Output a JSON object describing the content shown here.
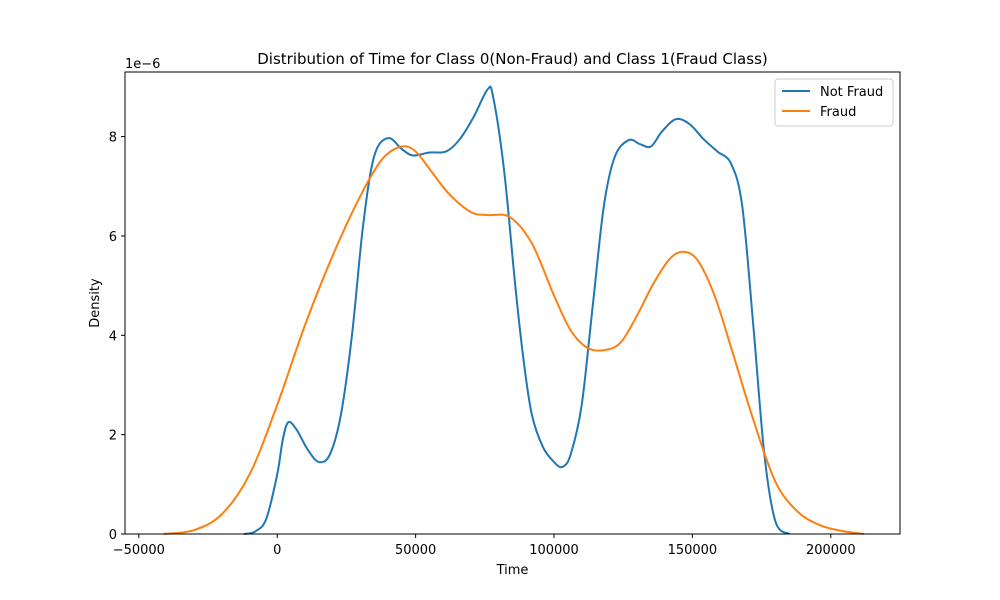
{
  "chart_data": {
    "type": "line",
    "title": "Distribution of Time for Class 0(Non-Fraud) and Class 1(Fraud Class)",
    "xlabel": "Time",
    "ylabel": "Density",
    "y_offset_label": "1e−6",
    "xlim": [
      -55000,
      225000
    ],
    "ylim": [
      0,
      9.3
    ],
    "xticks": [
      -50000,
      0,
      50000,
      100000,
      150000,
      200000
    ],
    "xtick_labels": [
      "−50000",
      "0",
      "50000",
      "100000",
      "150000",
      "200000"
    ],
    "yticks": [
      0,
      2,
      4,
      6,
      8
    ],
    "ytick_labels": [
      "0",
      "2",
      "4",
      "6",
      "8"
    ],
    "legend_position": "top-right",
    "grid": false,
    "series": [
      {
        "name": "Not Fraud",
        "color": "#1f77b4",
        "points": [
          [
            -12000,
            0.0
          ],
          [
            -8000,
            0.05
          ],
          [
            -4000,
            0.3
          ],
          [
            0,
            1.2
          ],
          [
            2000,
            1.9
          ],
          [
            4000,
            2.25
          ],
          [
            7000,
            2.1
          ],
          [
            11000,
            1.7
          ],
          [
            15000,
            1.45
          ],
          [
            19000,
            1.6
          ],
          [
            23000,
            2.4
          ],
          [
            27000,
            4.0
          ],
          [
            31000,
            6.2
          ],
          [
            35000,
            7.6
          ],
          [
            40000,
            7.97
          ],
          [
            45000,
            7.75
          ],
          [
            49000,
            7.62
          ],
          [
            55000,
            7.68
          ],
          [
            61000,
            7.7
          ],
          [
            66000,
            7.95
          ],
          [
            71000,
            8.4
          ],
          [
            76000,
            8.95
          ],
          [
            78000,
            8.8
          ],
          [
            82000,
            7.3
          ],
          [
            86000,
            5.0
          ],
          [
            89000,
            3.5
          ],
          [
            92000,
            2.4
          ],
          [
            96000,
            1.75
          ],
          [
            100000,
            1.45
          ],
          [
            103000,
            1.35
          ],
          [
            106000,
            1.6
          ],
          [
            110000,
            2.6
          ],
          [
            114000,
            4.6
          ],
          [
            118000,
            6.6
          ],
          [
            122000,
            7.6
          ],
          [
            127000,
            7.93
          ],
          [
            131000,
            7.85
          ],
          [
            135000,
            7.8
          ],
          [
            139000,
            8.1
          ],
          [
            144000,
            8.35
          ],
          [
            149000,
            8.25
          ],
          [
            154000,
            7.95
          ],
          [
            159000,
            7.7
          ],
          [
            164000,
            7.45
          ],
          [
            168000,
            6.6
          ],
          [
            172000,
            4.2
          ],
          [
            176000,
            1.6
          ],
          [
            180000,
            0.25
          ],
          [
            185000,
            0.0
          ]
        ]
      },
      {
        "name": "Fraud",
        "color": "#ff7f0e",
        "points": [
          [
            -41000,
            0.0
          ],
          [
            -30000,
            0.08
          ],
          [
            -20000,
            0.4
          ],
          [
            -10000,
            1.2
          ],
          [
            0,
            2.6
          ],
          [
            10000,
            4.2
          ],
          [
            20000,
            5.6
          ],
          [
            30000,
            6.8
          ],
          [
            38000,
            7.55
          ],
          [
            45000,
            7.8
          ],
          [
            50000,
            7.7
          ],
          [
            55000,
            7.35
          ],
          [
            62000,
            6.85
          ],
          [
            70000,
            6.48
          ],
          [
            76000,
            6.42
          ],
          [
            84000,
            6.38
          ],
          [
            92000,
            5.85
          ],
          [
            100000,
            4.8
          ],
          [
            106000,
            4.1
          ],
          [
            112000,
            3.75
          ],
          [
            118000,
            3.7
          ],
          [
            124000,
            3.85
          ],
          [
            130000,
            4.4
          ],
          [
            136000,
            5.05
          ],
          [
            142000,
            5.55
          ],
          [
            147000,
            5.68
          ],
          [
            152000,
            5.5
          ],
          [
            158000,
            4.8
          ],
          [
            164000,
            3.75
          ],
          [
            172000,
            2.3
          ],
          [
            180000,
            1.05
          ],
          [
            188000,
            0.45
          ],
          [
            196000,
            0.18
          ],
          [
            204000,
            0.06
          ],
          [
            212000,
            0.0
          ]
        ]
      }
    ]
  }
}
